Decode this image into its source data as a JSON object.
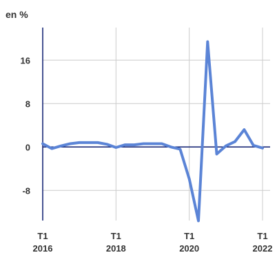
{
  "chart_data": {
    "type": "line",
    "ylabel": "en %",
    "ylim": [
      -14,
      22
    ],
    "yticks": [
      16,
      8,
      0,
      -8
    ],
    "ytick_labels": [
      "16",
      "8",
      "0",
      "-8"
    ],
    "x_ticks": [
      {
        "period": "T1",
        "year": "2016",
        "index": 0
      },
      {
        "period": "T1",
        "year": "2018",
        "index": 8
      },
      {
        "period": "T1",
        "year": "2020",
        "index": 16
      },
      {
        "period": "T1",
        "year": "2022",
        "index": 24
      }
    ],
    "grid": true,
    "series": [
      {
        "color": "#5b84d6",
        "x": [
          "2016 T1",
          "2016 T2",
          "2016 T3",
          "2016 T4",
          "2017 T1",
          "2017 T2",
          "2017 T3",
          "2017 T4",
          "2018 T1",
          "2018 T2",
          "2018 T3",
          "2018 T4",
          "2019 T1",
          "2019 T2",
          "2019 T3",
          "2019 T4",
          "2020 T1",
          "2020 T2",
          "2020 T3",
          "2020 T4",
          "2021 T1",
          "2021 T2",
          "2021 T3",
          "2021 T4",
          "2022 T1"
        ],
        "values": [
          0.6,
          -0.3,
          0.2,
          0.6,
          0.8,
          0.8,
          0.8,
          0.5,
          -0.1,
          0.4,
          0.4,
          0.6,
          0.6,
          0.6,
          0.0,
          -0.4,
          -5.9,
          -13.6,
          19.4,
          -1.3,
          0.2,
          1.0,
          3.2,
          0.3,
          -0.2
        ]
      }
    ],
    "colors": {
      "axis": "#0a1a6e",
      "grid": "#cccccc",
      "text": "#333333"
    }
  }
}
